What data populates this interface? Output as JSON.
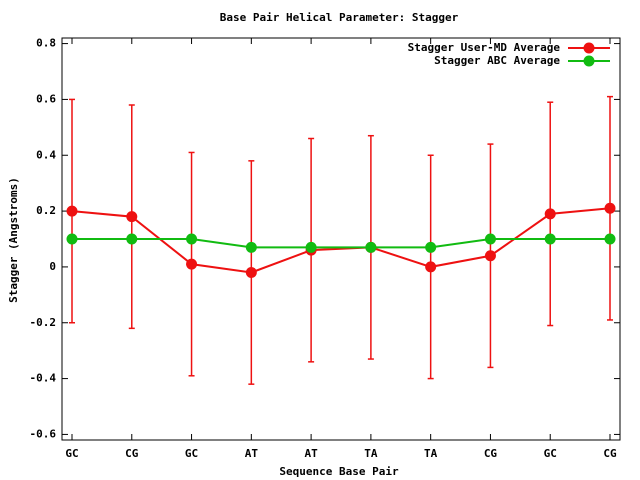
{
  "chart_data": {
    "type": "line",
    "title": "Base Pair Helical Parameter: Stagger",
    "x_label": "Sequence Base Pair",
    "y_label": "Stagger (Angstroms)",
    "categories": [
      "GC",
      "CG",
      "GC",
      "AT",
      "AT",
      "TA",
      "TA",
      "CG",
      "GC",
      "CG"
    ],
    "series": [
      {
        "name": "Stagger User-MD Average",
        "color": "#ee1111",
        "values": [
          0.2,
          0.18,
          0.01,
          -0.02,
          0.06,
          0.07,
          0.0,
          0.04,
          0.19,
          0.21
        ],
        "errors": [
          0.4,
          0.4,
          0.4,
          0.4,
          0.4,
          0.4,
          0.4,
          0.4,
          0.4,
          0.4
        ]
      },
      {
        "name": "Stagger ABC Average",
        "color": "#11bb11",
        "values": [
          0.1,
          0.1,
          0.1,
          0.07,
          0.07,
          0.07,
          0.07,
          0.1,
          0.1,
          0.1
        ]
      }
    ],
    "ylim": [
      -0.62,
      0.82
    ],
    "yticks": [
      -0.6,
      -0.4,
      -0.2,
      0,
      0.2,
      0.4,
      0.6,
      0.8
    ],
    "legend": "upper-right"
  }
}
